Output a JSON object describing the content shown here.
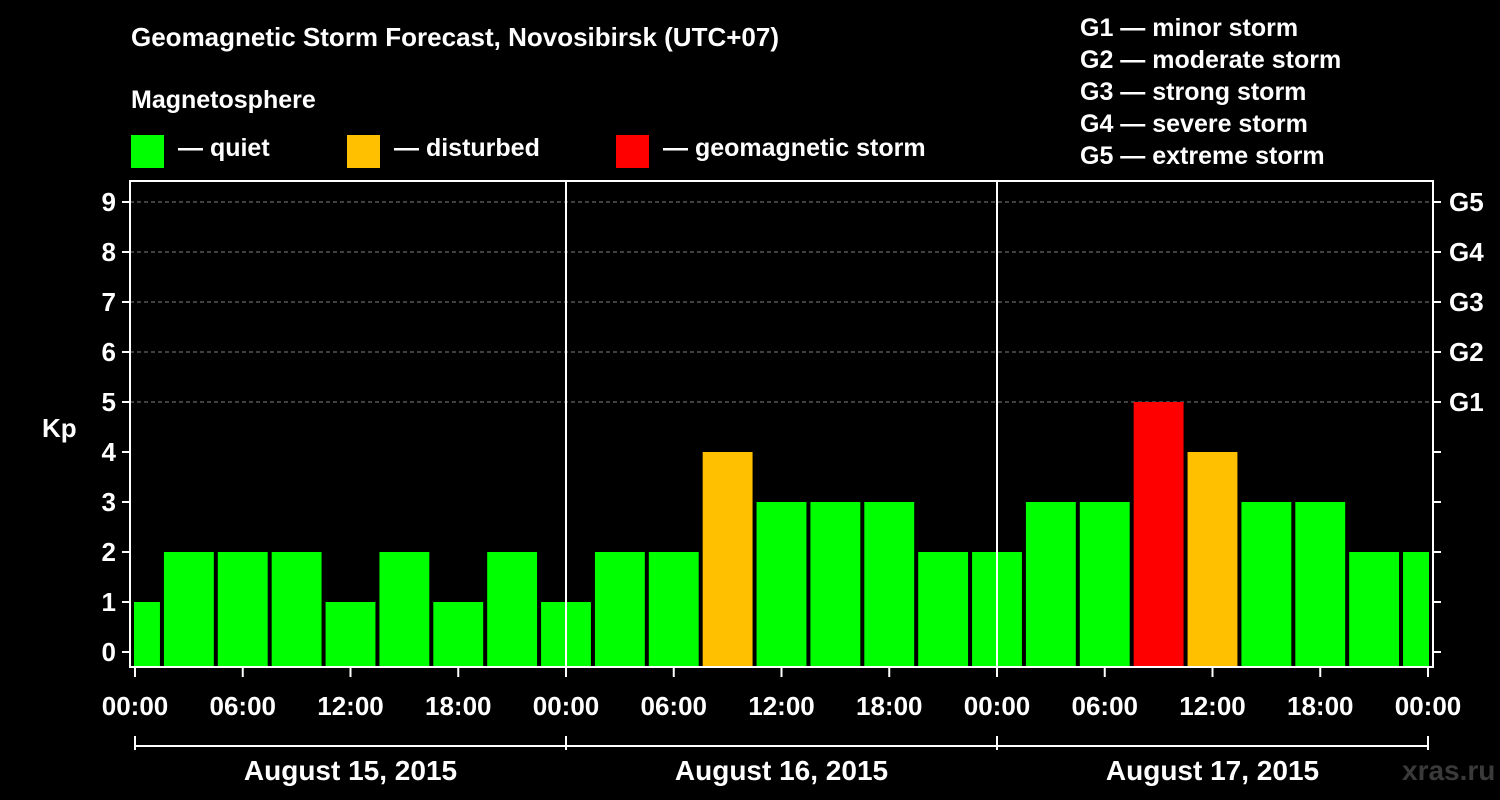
{
  "title": "Geomagnetic Storm Forecast, Novosibirsk (UTC+07)",
  "magnetosphere_label": "Magnetosphere",
  "legend": [
    {
      "label": "— quiet",
      "color": "#00ff00"
    },
    {
      "label": "— disturbed",
      "color": "#ffc000"
    },
    {
      "label": "— geomagnetic storm",
      "color": "#ff0000"
    }
  ],
  "storm_scale": [
    "G1 — minor storm",
    "G2 — moderate storm",
    "G3 — strong storm",
    "G4 — severe storm",
    "G5 — extreme storm"
  ],
  "watermark": "xras.ru",
  "colors": {
    "background": "#000000",
    "axis": "#ffffff",
    "grid": "#808080",
    "quiet": "#00ff00",
    "disturbed": "#ffc000",
    "storm": "#ff0000"
  },
  "chart_data": {
    "type": "bar",
    "title": "Geomagnetic Storm Forecast, Novosibirsk (UTC+07)",
    "ylabel": "Kp",
    "ylim": [
      0,
      9
    ],
    "yticks": [
      0,
      1,
      2,
      3,
      4,
      5,
      6,
      7,
      8,
      9
    ],
    "right_axis_labels": [
      {
        "kp": 5,
        "label": "G1"
      },
      {
        "kp": 6,
        "label": "G2"
      },
      {
        "kp": 7,
        "label": "G3"
      },
      {
        "kp": 8,
        "label": "G4"
      },
      {
        "kp": 9,
        "label": "G5"
      }
    ],
    "x_tick_labels": [
      "00:00",
      "06:00",
      "12:00",
      "18:00",
      "00:00",
      "06:00",
      "12:00",
      "18:00",
      "00:00",
      "06:00",
      "12:00",
      "18:00",
      "00:00"
    ],
    "x_range_hours": [
      0,
      72
    ],
    "days": [
      "August 15, 2015",
      "August 16, 2015",
      "August 17, 2015"
    ],
    "interval_hours": 3,
    "values": [
      1,
      2,
      2,
      2,
      1,
      2,
      1,
      2,
      1,
      2,
      2,
      4,
      3,
      3,
      3,
      2,
      2,
      3,
      3,
      5,
      4,
      3,
      3,
      2,
      2
    ],
    "color_rule": {
      "quiet": "Kp <= 3",
      "disturbed": "Kp = 4",
      "storm": "Kp >= 5"
    }
  }
}
